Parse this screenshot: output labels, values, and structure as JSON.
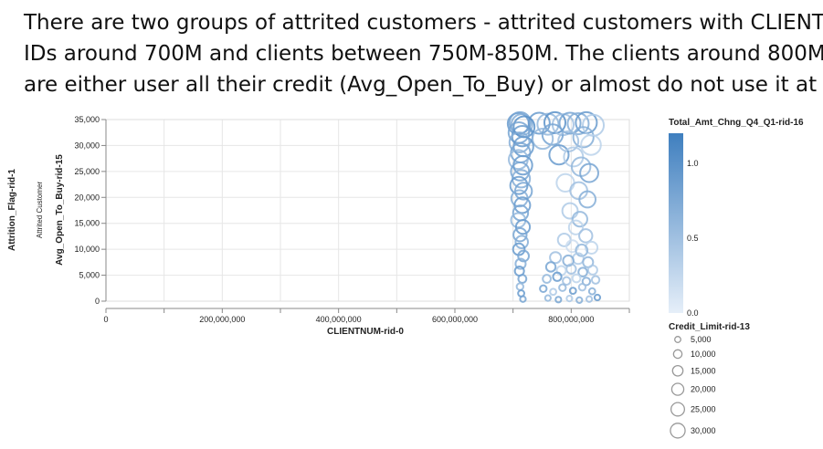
{
  "headline": {
    "line1": "There are two groups of attrited customers - attrited customers with CLIENT",
    "line2": "IDs around 700M and clients between 750M-850M. The clients around 800M",
    "line3": "are either user all their credit (Avg_Open_To_Buy) or almost do not use it at all."
  },
  "chart_data": {
    "type": "scatter",
    "row_facet_title": "Attrition_Flag-rid-1",
    "row_facet_value": "Attrited Customer",
    "xlabel": "CLIENTNUM-rid-0",
    "ylabel": "Avg_Open_To_Buy-rid-15",
    "xlim": [
      0,
      900000000
    ],
    "ylim": [
      0,
      35000
    ],
    "x_ticks": [
      {
        "value": 0,
        "label": "0"
      },
      {
        "value": 200000000,
        "label": "200,000,000"
      },
      {
        "value": 400000000,
        "label": "400,000,000"
      },
      {
        "value": 600000000,
        "label": "600,000,000"
      },
      {
        "value": 800000000,
        "label": "800,000,000"
      }
    ],
    "y_ticks": [
      {
        "value": 0,
        "label": "0"
      },
      {
        "value": 5000,
        "label": "5,000"
      },
      {
        "value": 10000,
        "label": "10,000"
      },
      {
        "value": 15000,
        "label": "15,000"
      },
      {
        "value": 20000,
        "label": "20,000"
      },
      {
        "value": 25000,
        "label": "25,000"
      },
      {
        "value": 30000,
        "label": "30,000"
      },
      {
        "value": 35000,
        "label": "35,000"
      }
    ],
    "grid": true,
    "color_legend": {
      "title": "Total_Amt_Chng_Q4_Q1-rid-16",
      "min": 0.0,
      "max": 1.2,
      "ticks": [
        {
          "value": 1.0,
          "label": "1.0"
        },
        {
          "value": 0.5,
          "label": "0.5"
        },
        {
          "value": 0.0,
          "label": "0.0"
        }
      ],
      "color_low": "#e6eff9",
      "color_high": "#3f7fbf",
      "placement": "right"
    },
    "size_legend": {
      "title": "Credit_Limit-rid-13",
      "entries": [
        {
          "value": 5000,
          "label": "5,000"
        },
        {
          "value": 10000,
          "label": "10,000"
        },
        {
          "value": 15000,
          "label": "15,000"
        },
        {
          "value": 20000,
          "label": "20,000"
        },
        {
          "value": 25000,
          "label": "25,000"
        },
        {
          "value": 30000,
          "label": "30,000"
        }
      ],
      "placement": "right"
    },
    "points": [
      {
        "x": 709000000,
        "y": 34200,
        "credit": 34500,
        "chng": 0.9
      },
      {
        "x": 712000000,
        "y": 34400,
        "credit": 34500,
        "chng": 0.8
      },
      {
        "x": 715000000,
        "y": 34000,
        "credit": 34500,
        "chng": 0.7
      },
      {
        "x": 719000000,
        "y": 33600,
        "credit": 34000,
        "chng": 1.0
      },
      {
        "x": 710000000,
        "y": 32500,
        "credit": 33000,
        "chng": 0.8
      },
      {
        "x": 716000000,
        "y": 31800,
        "credit": 32500,
        "chng": 0.9
      },
      {
        "x": 711000000,
        "y": 30600,
        "credit": 31000,
        "chng": 0.7
      },
      {
        "x": 718000000,
        "y": 29800,
        "credit": 30000,
        "chng": 0.9
      },
      {
        "x": 713000000,
        "y": 28600,
        "credit": 29000,
        "chng": 0.8
      },
      {
        "x": 709000000,
        "y": 27300,
        "credit": 28000,
        "chng": 0.6
      },
      {
        "x": 717000000,
        "y": 26200,
        "credit": 27000,
        "chng": 0.9
      },
      {
        "x": 712000000,
        "y": 25000,
        "credit": 25500,
        "chng": 0.8
      },
      {
        "x": 714000000,
        "y": 23600,
        "credit": 24000,
        "chng": 0.7
      },
      {
        "x": 710000000,
        "y": 22300,
        "credit": 23000,
        "chng": 0.9
      },
      {
        "x": 718000000,
        "y": 21200,
        "credit": 22000,
        "chng": 0.8
      },
      {
        "x": 711000000,
        "y": 19800,
        "credit": 20500,
        "chng": 0.7
      },
      {
        "x": 716000000,
        "y": 18500,
        "credit": 19000,
        "chng": 0.9
      },
      {
        "x": 713000000,
        "y": 17000,
        "credit": 17500,
        "chng": 0.8
      },
      {
        "x": 709000000,
        "y": 15600,
        "credit": 16000,
        "chng": 0.6
      },
      {
        "x": 717000000,
        "y": 14300,
        "credit": 15000,
        "chng": 0.9
      },
      {
        "x": 712000000,
        "y": 12800,
        "credit": 13500,
        "chng": 0.8
      },
      {
        "x": 715000000,
        "y": 11400,
        "credit": 12000,
        "chng": 0.7
      },
      {
        "x": 710000000,
        "y": 10000,
        "credit": 10500,
        "chng": 0.9
      },
      {
        "x": 718000000,
        "y": 8700,
        "credit": 9000,
        "chng": 0.8
      },
      {
        "x": 713000000,
        "y": 7200,
        "credit": 8000,
        "chng": 0.7
      },
      {
        "x": 711000000,
        "y": 5800,
        "credit": 6500,
        "chng": 0.9
      },
      {
        "x": 716000000,
        "y": 4300,
        "credit": 5000,
        "chng": 0.8
      },
      {
        "x": 712000000,
        "y": 2800,
        "credit": 3500,
        "chng": 0.6
      },
      {
        "x": 714000000,
        "y": 1500,
        "credit": 3000,
        "chng": 0.9
      },
      {
        "x": 717000000,
        "y": 400,
        "credit": 2500,
        "chng": 0.8
      },
      {
        "x": 745000000,
        "y": 34300,
        "credit": 34500,
        "chng": 0.9
      },
      {
        "x": 760000000,
        "y": 34100,
        "credit": 34500,
        "chng": 0.6
      },
      {
        "x": 772000000,
        "y": 34400,
        "credit": 34500,
        "chng": 1.0
      },
      {
        "x": 786000000,
        "y": 34000,
        "credit": 34500,
        "chng": 0.5
      },
      {
        "x": 798000000,
        "y": 34300,
        "credit": 34500,
        "chng": 0.8
      },
      {
        "x": 812000000,
        "y": 34200,
        "credit": 34500,
        "chng": 0.7
      },
      {
        "x": 826000000,
        "y": 34400,
        "credit": 34500,
        "chng": 0.9
      },
      {
        "x": 838000000,
        "y": 33900,
        "credit": 34500,
        "chng": 0.4
      },
      {
        "x": 751000000,
        "y": 31300,
        "credit": 32000,
        "chng": 0.6
      },
      {
        "x": 768000000,
        "y": 32100,
        "credit": 32500,
        "chng": 0.8
      },
      {
        "x": 795000000,
        "y": 30800,
        "credit": 31500,
        "chng": 0.5
      },
      {
        "x": 821000000,
        "y": 31600,
        "credit": 32000,
        "chng": 0.7
      },
      {
        "x": 834000000,
        "y": 30100,
        "credit": 30500,
        "chng": 0.3
      },
      {
        "x": 779000000,
        "y": 28200,
        "credit": 29000,
        "chng": 0.9
      },
      {
        "x": 804000000,
        "y": 27800,
        "credit": 28500,
        "chng": 0.4
      },
      {
        "x": 817000000,
        "y": 25900,
        "credit": 27000,
        "chng": 0.6
      },
      {
        "x": 831000000,
        "y": 24700,
        "credit": 25500,
        "chng": 0.8
      },
      {
        "x": 790000000,
        "y": 22800,
        "credit": 24000,
        "chng": 0.3
      },
      {
        "x": 813000000,
        "y": 21300,
        "credit": 22500,
        "chng": 0.5
      },
      {
        "x": 828000000,
        "y": 19600,
        "credit": 20500,
        "chng": 0.7
      },
      {
        "x": 798000000,
        "y": 17400,
        "credit": 18500,
        "chng": 0.4
      },
      {
        "x": 815000000,
        "y": 15800,
        "credit": 17000,
        "chng": 0.6
      },
      {
        "x": 808000000,
        "y": 14200,
        "credit": 15000,
        "chng": 0.3
      },
      {
        "x": 825000000,
        "y": 12600,
        "credit": 13500,
        "chng": 0.5
      },
      {
        "x": 788000000,
        "y": 11800,
        "credit": 12500,
        "chng": 0.4
      },
      {
        "x": 802000000,
        "y": 10600,
        "credit": 11000,
        "chng": 0.2
      },
      {
        "x": 818000000,
        "y": 9800,
        "credit": 10500,
        "chng": 0.6
      },
      {
        "x": 835000000,
        "y": 10300,
        "credit": 11000,
        "chng": 0.3
      },
      {
        "x": 773000000,
        "y": 8400,
        "credit": 9500,
        "chng": 0.5
      },
      {
        "x": 795000000,
        "y": 7800,
        "credit": 8500,
        "chng": 0.7
      },
      {
        "x": 812000000,
        "y": 8200,
        "credit": 9000,
        "chng": 0.4
      },
      {
        "x": 829000000,
        "y": 7500,
        "credit": 8000,
        "chng": 0.6
      },
      {
        "x": 765000000,
        "y": 6600,
        "credit": 7000,
        "chng": 0.8
      },
      {
        "x": 783000000,
        "y": 5900,
        "credit": 6500,
        "chng": 0.3
      },
      {
        "x": 800000000,
        "y": 6200,
        "credit": 7000,
        "chng": 0.5
      },
      {
        "x": 820000000,
        "y": 5600,
        "credit": 6000,
        "chng": 0.7
      },
      {
        "x": 837000000,
        "y": 6000,
        "credit": 6500,
        "chng": 0.4
      },
      {
        "x": 758000000,
        "y": 4300,
        "credit": 5000,
        "chng": 0.6
      },
      {
        "x": 776000000,
        "y": 4700,
        "credit": 5500,
        "chng": 0.9
      },
      {
        "x": 792000000,
        "y": 3900,
        "credit": 4500,
        "chng": 0.5
      },
      {
        "x": 809000000,
        "y": 4400,
        "credit": 5000,
        "chng": 0.3
      },
      {
        "x": 826000000,
        "y": 3800,
        "credit": 4500,
        "chng": 0.7
      },
      {
        "x": 842000000,
        "y": 4100,
        "credit": 4500,
        "chng": 0.5
      },
      {
        "x": 752000000,
        "y": 2400,
        "credit": 3500,
        "chng": 0.8
      },
      {
        "x": 769000000,
        "y": 1800,
        "credit": 3000,
        "chng": 0.4
      },
      {
        "x": 785000000,
        "y": 2600,
        "credit": 3500,
        "chng": 0.6
      },
      {
        "x": 803000000,
        "y": 2000,
        "credit": 3000,
        "chng": 0.9
      },
      {
        "x": 819000000,
        "y": 2700,
        "credit": 3500,
        "chng": 0.5
      },
      {
        "x": 836000000,
        "y": 1900,
        "credit": 3000,
        "chng": 0.7
      },
      {
        "x": 760000000,
        "y": 600,
        "credit": 2500,
        "chng": 0.6
      },
      {
        "x": 778000000,
        "y": 300,
        "credit": 2500,
        "chng": 0.8
      },
      {
        "x": 797000000,
        "y": 500,
        "credit": 2500,
        "chng": 0.4
      },
      {
        "x": 814000000,
        "y": 200,
        "credit": 2500,
        "chng": 0.7
      },
      {
        "x": 831000000,
        "y": 400,
        "credit": 2500,
        "chng": 0.5
      },
      {
        "x": 845000000,
        "y": 700,
        "credit": 2500,
        "chng": 0.9
      }
    ]
  }
}
